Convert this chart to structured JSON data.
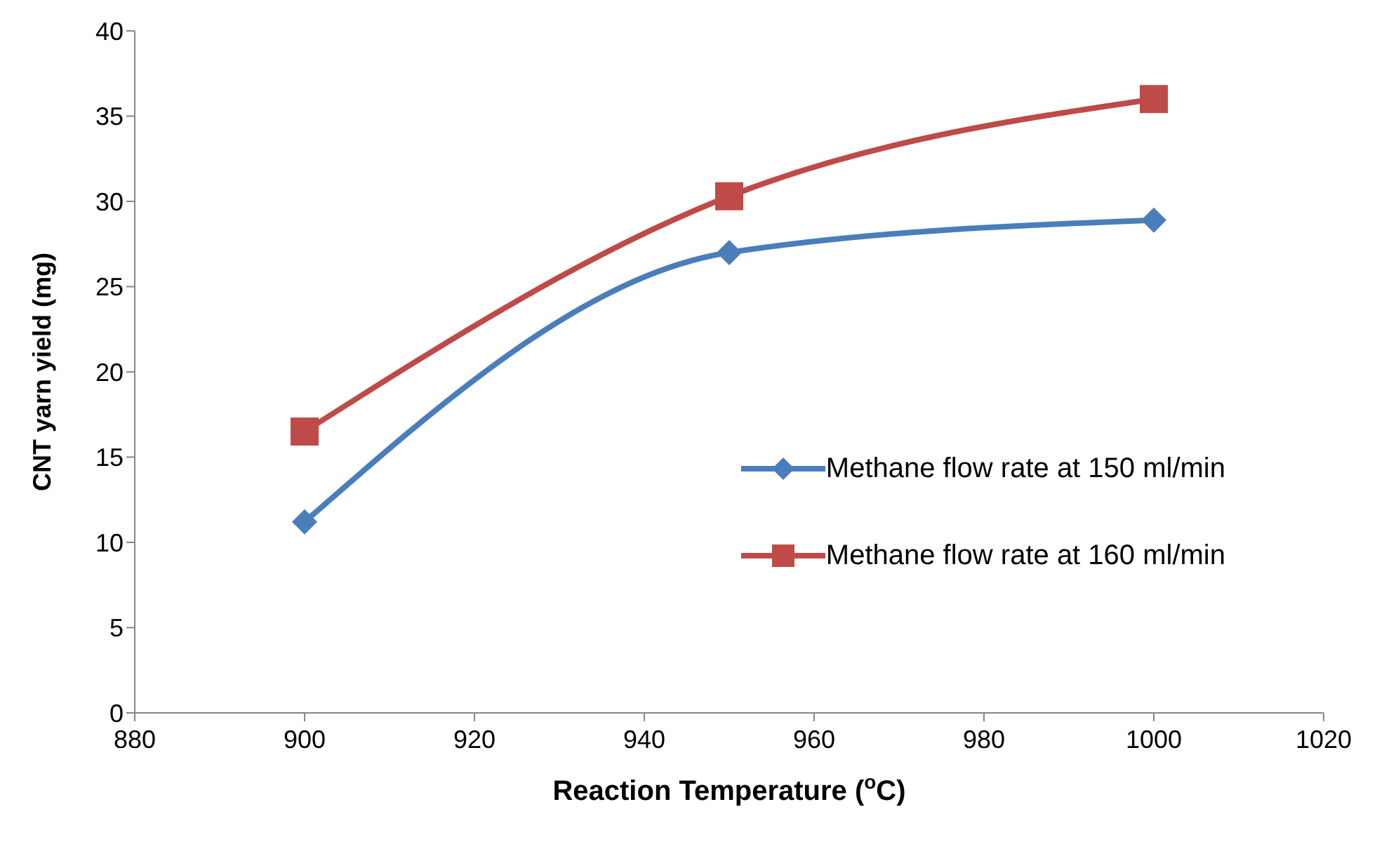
{
  "chart_data": {
    "type": "line",
    "xlabel": "Reaction Temperature ($^{o}$C)",
    "ylabel": "CNT yarn yield (mg)",
    "x": [
      900,
      950,
      1000
    ],
    "series": [
      {
        "name": "Methane flow rate at 150 ml/min",
        "color": "#4a7ebb",
        "values": [
          11.2,
          27.0,
          28.9
        ],
        "marker": "diamond"
      },
      {
        "name": "Methane flow rate at 160 ml/min",
        "color": "#be4b48",
        "values": [
          16.5,
          30.3,
          36.0
        ],
        "marker": "square"
      }
    ],
    "xlim": [
      880,
      1020
    ],
    "xticks": [
      880,
      900,
      920,
      940,
      960,
      980,
      1000,
      1020
    ],
    "ylim": [
      0,
      40
    ],
    "yticks": [
      0,
      5,
      10,
      15,
      20,
      25,
      30,
      35,
      40
    ],
    "grid": false,
    "legend": "right",
    "line_style": "solid"
  }
}
